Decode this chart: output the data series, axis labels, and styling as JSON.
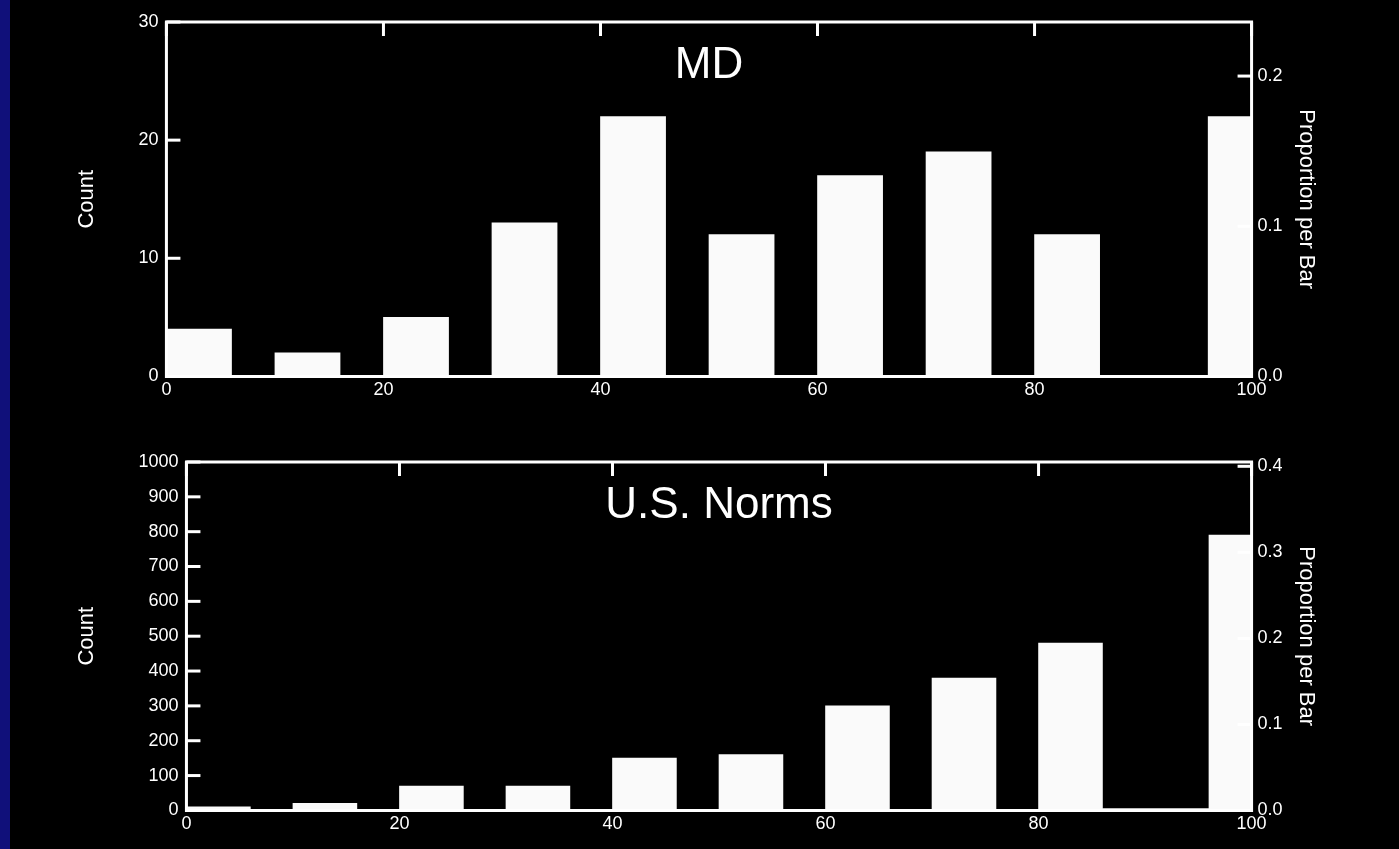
{
  "chart_data": [
    {
      "type": "histogram",
      "title": "MD",
      "ylabel": "Count",
      "y2label": "Proportion per Bar",
      "color": "#fafafa",
      "bins": [
        0,
        6,
        10,
        16,
        20,
        26,
        30,
        36,
        40,
        46,
        50,
        56,
        60,
        66,
        70,
        76,
        80,
        86,
        96,
        100
      ],
      "values": [
        4,
        0,
        2,
        0,
        5,
        0,
        13,
        0,
        22,
        0,
        12,
        0,
        17,
        0,
        19,
        0,
        12,
        0,
        22
      ],
      "xlim": [
        0,
        100
      ],
      "xticks": [
        0,
        20,
        40,
        60,
        80,
        100
      ],
      "ylim": [
        0,
        30
      ],
      "yticks": [
        0,
        10,
        20,
        30
      ],
      "y2lim": [
        0,
        0.236
      ],
      "y2ticks": [
        {
          "value": 0,
          "label": "0.0"
        },
        {
          "value": 0.1,
          "label": "0.1"
        },
        {
          "value": 0.2,
          "label": "0.2"
        }
      ],
      "grid": false,
      "legend": false
    },
    {
      "type": "histogram",
      "title": "U.S. Norms",
      "ylabel": "Count",
      "y2label": "Proportion per Bar",
      "color": "#fafafa",
      "bins": [
        0,
        6,
        10,
        16,
        20,
        26,
        30,
        36,
        40,
        46,
        50,
        56,
        60,
        66,
        70,
        76,
        80,
        86,
        96,
        100
      ],
      "values": [
        10,
        0,
        20,
        0,
        70,
        0,
        70,
        0,
        150,
        0,
        160,
        0,
        300,
        0,
        380,
        0,
        480,
        5,
        790
      ],
      "xlim": [
        0,
        100
      ],
      "xticks": [
        0,
        20,
        40,
        60,
        80,
        100
      ],
      "ylim": [
        0,
        1000
      ],
      "yticks": [
        0,
        100,
        200,
        300,
        400,
        500,
        600,
        700,
        800,
        900,
        1000
      ],
      "y2lim": [
        0,
        0.405
      ],
      "y2ticks": [
        {
          "value": 0,
          "label": "0.0"
        },
        {
          "value": 0.1,
          "label": "0.1"
        },
        {
          "value": 0.2,
          "label": "0.2"
        },
        {
          "value": 0.3,
          "label": "0.3"
        },
        {
          "value": 0.4,
          "label": "0.4"
        }
      ],
      "grid": false,
      "legend": false
    }
  ]
}
